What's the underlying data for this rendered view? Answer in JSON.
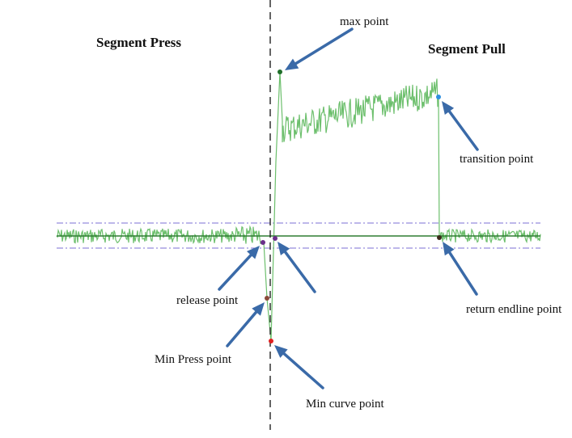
{
  "headings": {
    "left": "Segment Press",
    "right": "Segment Pull"
  },
  "annotations": {
    "max_point": "max point",
    "transition_point": "transition point",
    "release_point": "release point",
    "return_endline_point": "return endline point",
    "min_press_point": "Min Press point",
    "min_curve_point": "Min curve point"
  },
  "colors": {
    "signal": "#6cbf6c",
    "baseline": "#2e7d32",
    "band": "#7b6fd6",
    "arrow": "#3a6aa8",
    "divider": "#222222",
    "max_point": "#1f6f2a",
    "transition_point": "#2f8fe0",
    "release_point": "#6a2f8a",
    "return_endline_point": "#3b2a1a",
    "min_press_point": "#8b4a3a",
    "min_curve_point": "#e02020"
  }
}
